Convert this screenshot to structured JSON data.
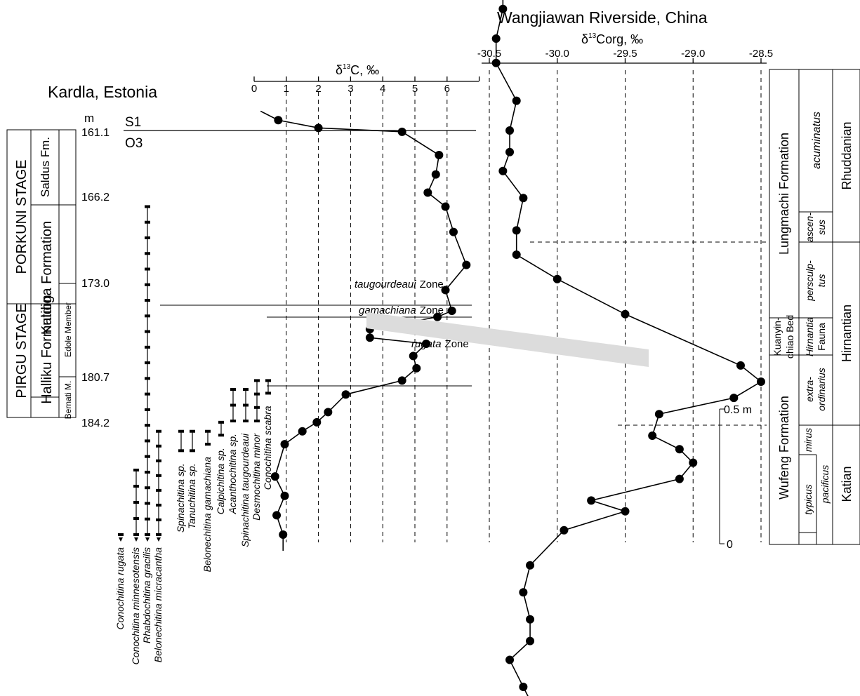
{
  "chart_data": [
    {
      "type": "line",
      "title": "Kardla, Estonia",
      "xlabel": "δ13C, ‰",
      "ylabel": "m",
      "xlim": [
        0,
        7
      ],
      "x_ticks": [
        0,
        1,
        2,
        3,
        4,
        5,
        6
      ],
      "depth_ticks": [
        "161.1",
        "166.2",
        "173.0",
        "180.7",
        "184.2"
      ],
      "boundary_labels": {
        "upper": "S1",
        "lower": "O3"
      },
      "series": [
        {
          "points": [
            {
              "x": 0.2,
              "y": 159.6
            },
            {
              "x": 0.75,
              "y": 160.3
            },
            {
              "x": 2.0,
              "y": 160.9
            },
            {
              "x": 4.6,
              "y": 161.2
            },
            {
              "x": 5.75,
              "y": 163.0
            },
            {
              "x": 5.65,
              "y": 164.5
            },
            {
              "x": 5.4,
              "y": 165.9
            },
            {
              "x": 5.95,
              "y": 167.0
            },
            {
              "x": 6.2,
              "y": 169.0
            },
            {
              "x": 6.6,
              "y": 171.6
            },
            {
              "x": 5.95,
              "y": 173.6
            },
            {
              "x": 6.15,
              "y": 175.3
            },
            {
              "x": 5.7,
              "y": 175.8
            },
            {
              "x": 3.6,
              "y": 176.8
            },
            {
              "x": 3.6,
              "y": 177.5
            },
            {
              "x": 5.35,
              "y": 178.0
            },
            {
              "x": 4.95,
              "y": 179.0
            },
            {
              "x": 5.05,
              "y": 180.0
            },
            {
              "x": 4.6,
              "y": 181.0
            },
            {
              "x": 2.85,
              "y": 182.1
            },
            {
              "x": 2.3,
              "y": 183.5
            },
            {
              "x": 1.95,
              "y": 184.3
            },
            {
              "x": 1.5,
              "y": 185.0
            },
            {
              "x": 0.95,
              "y": 186.0
            },
            {
              "x": 0.65,
              "y": 188.5
            },
            {
              "x": 0.95,
              "y": 190.0
            },
            {
              "x": 0.7,
              "y": 191.5
            },
            {
              "x": 0.9,
              "y": 193.0
            }
          ]
        }
      ],
      "zones": [
        {
          "name": "taugourdeaui",
          "suffix": "Zone"
        },
        {
          "name": "gamachiana",
          "suffix": "Zone"
        },
        {
          "name": "rugata",
          "suffix": "Zone"
        }
      ],
      "units": {
        "stages": [
          {
            "name": "PORKUNI STAGE"
          },
          {
            "name": "PIRGU STAGE"
          }
        ],
        "formations": [
          {
            "name": "Saldus Fm."
          },
          {
            "name": "Kuldiga Formation"
          },
          {
            "name": "Halliku Formation"
          }
        ],
        "members": [
          {
            "name": "Edole Member"
          },
          {
            "name": "Bernati M."
          }
        ]
      },
      "taxa": [
        {
          "name": "Conochitina rugata",
          "italic": true,
          "range": [
            193.0,
            193.0
          ],
          "arrow": true
        },
        {
          "name": "Conochitina minnesotensis",
          "italic": true,
          "range": [
            188.0,
            193.0
          ],
          "arrow": true
        },
        {
          "name": "Rhabdochitina gracilis",
          "italic": true,
          "range": [
            167.0,
            193.0
          ],
          "arrow": true
        },
        {
          "name": "Belonechitina micracantha",
          "italic": true,
          "range": [
            185.0,
            193.0
          ],
          "arrow": true
        },
        {
          "name": "Spinachitina sp.",
          "italic": true,
          "range": [
            185.0,
            186.5
          ],
          "arrow": false
        },
        {
          "name": "Tanuchitina sp.",
          "italic": true,
          "range": [
            185.0,
            186.5
          ],
          "arrow": false
        },
        {
          "name": "Belonechitina gamachiana",
          "italic": true,
          "range": [
            185.0,
            186.0
          ],
          "arrow": false
        },
        {
          "name": "Calpichitina sp.",
          "italic": true,
          "range": [
            184.3,
            185.3
          ],
          "arrow": false
        },
        {
          "name": "Acanthochitina sp.",
          "italic": true,
          "range": [
            181.7,
            184.2
          ],
          "arrow": false
        },
        {
          "name": "Spinachitina taugourdeaui",
          "italic": true,
          "range": [
            181.7,
            184.2
          ],
          "arrow": false
        },
        {
          "name": "Desmochitina minor",
          "italic": true,
          "range": [
            181.0,
            184.2
          ],
          "arrow": false
        },
        {
          "name": "Conochitina scabra",
          "italic": true,
          "range": [
            181.0,
            182.0
          ],
          "arrow": false
        }
      ]
    },
    {
      "type": "line",
      "title": "Wangjiawan Riverside, China",
      "xlabel": "δ13Corg, ‰",
      "xlim": [
        -30.5,
        -28.5
      ],
      "x_ticks": [
        -30.5,
        -30.0,
        -29.5,
        -29.0,
        -28.5
      ],
      "x_tick_labels": [
        "-30.5",
        "-30.0",
        "-29.5",
        "-29.0",
        "-28.5"
      ],
      "height_scale": {
        "label": "0.5 m",
        "zero_label": "0"
      },
      "series": [
        {
          "points": [
            {
              "x": -30.35,
              "y": 2.19
            },
            {
              "x": -30.4,
              "y": 2.05
            },
            {
              "x": -30.4,
              "y": 1.98
            },
            {
              "x": -30.45,
              "y": 1.87
            },
            {
              "x": -30.45,
              "y": 1.78
            },
            {
              "x": -30.3,
              "y": 1.64
            },
            {
              "x": -30.35,
              "y": 1.53
            },
            {
              "x": -30.35,
              "y": 1.45
            },
            {
              "x": -30.4,
              "y": 1.38
            },
            {
              "x": -30.25,
              "y": 1.28
            },
            {
              "x": -30.3,
              "y": 1.16
            },
            {
              "x": -30.3,
              "y": 1.07
            },
            {
              "x": -30.0,
              "y": 0.98
            },
            {
              "x": -29.5,
              "y": 0.85
            },
            {
              "x": -28.65,
              "y": 0.66
            },
            {
              "x": -28.5,
              "y": 0.6
            },
            {
              "x": -28.7,
              "y": 0.54
            },
            {
              "x": -29.25,
              "y": 0.48
            },
            {
              "x": -29.3,
              "y": 0.4
            },
            {
              "x": -29.1,
              "y": 0.35
            },
            {
              "x": -29.0,
              "y": 0.3
            },
            {
              "x": -29.1,
              "y": 0.24
            },
            {
              "x": -29.75,
              "y": 0.16
            },
            {
              "x": -29.5,
              "y": 0.12
            },
            {
              "x": -29.95,
              "y": 0.05
            },
            {
              "x": -30.2,
              "y": -0.08
            },
            {
              "x": -30.25,
              "y": -0.18
            },
            {
              "x": -30.2,
              "y": -0.28
            },
            {
              "x": -30.2,
              "y": -0.36
            },
            {
              "x": -30.35,
              "y": -0.43
            },
            {
              "x": -30.25,
              "y": -0.53
            },
            {
              "x": -30.2,
              "y": -0.58
            },
            {
              "x": -30.3,
              "y": -0.66
            }
          ]
        }
      ],
      "units": {
        "formations": [
          {
            "name": "Lungmachi Formation"
          },
          {
            "name": "Wufeng Formation"
          }
        ],
        "beds": [
          {
            "name": "Kuanyin-",
            "name2": "chiao Bed"
          }
        ],
        "biozones": [
          {
            "name": "acuminatus"
          },
          {
            "name": "ascen-",
            "name2": "sus"
          },
          {
            "name": "persculp-",
            "name2": "tus"
          },
          {
            "name": "Hirnantia",
            "name2": "Fauna"
          },
          {
            "name": "extra-",
            "name2": "ordinarius"
          },
          {
            "name": "mirus"
          },
          {
            "name": "pacificus"
          },
          {
            "name": "typicus"
          }
        ],
        "stages": [
          {
            "name": "Rhuddanian"
          },
          {
            "name": "Hirnantian"
          },
          {
            "name": "Katian"
          }
        ]
      }
    }
  ]
}
